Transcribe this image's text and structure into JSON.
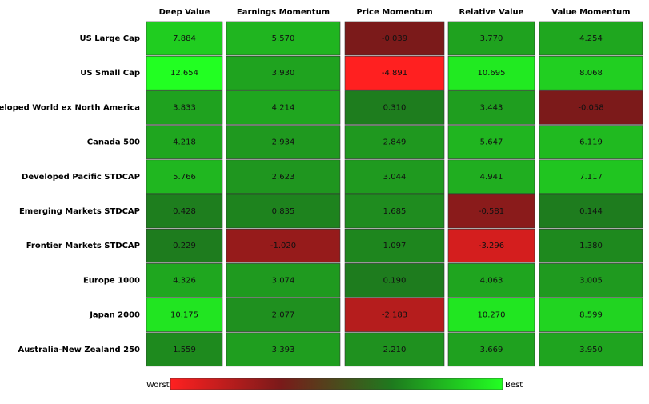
{
  "chart_data": {
    "type": "heatmap",
    "columns": [
      "Deep Value",
      "Earnings Momentum",
      "Price Momentum",
      "Relative Value",
      "Value Momentum"
    ],
    "categories": [
      "US Large Cap",
      "US Small Cap",
      "Developed World ex North America",
      "Canada 500",
      "Developed Pacific STDCAP",
      "Emerging Markets STDCAP",
      "Frontier Markets STDCAP",
      "Europe 1000",
      "Japan 2000",
      "Australia-New Zealand 250"
    ],
    "values": [
      [
        7.884,
        5.57,
        -0.039,
        3.77,
        4.254
      ],
      [
        12.654,
        3.93,
        -4.891,
        10.695,
        8.068
      ],
      [
        3.833,
        4.214,
        0.31,
        3.443,
        -0.058
      ],
      [
        4.218,
        2.934,
        2.849,
        5.647,
        6.119
      ],
      [
        5.766,
        2.623,
        3.044,
        4.941,
        7.117
      ],
      [
        0.428,
        0.835,
        1.685,
        -0.581,
        0.144
      ],
      [
        0.229,
        -1.02,
        1.097,
        -3.296,
        1.38
      ],
      [
        4.326,
        3.074,
        0.19,
        4.063,
        3.005
      ],
      [
        10.175,
        2.077,
        -2.183,
        10.27,
        8.599
      ],
      [
        1.559,
        3.393,
        2.21,
        3.669,
        3.95
      ]
    ],
    "value_labels": [
      [
        "7.884",
        "5.570",
        "-0.039",
        "3.770",
        "4.254"
      ],
      [
        "12.654",
        "3.930",
        "-4.891",
        "10.695",
        "8.068"
      ],
      [
        "3.833",
        "4.214",
        "0.310",
        "3.443",
        "-0.058"
      ],
      [
        "4.218",
        "2.934",
        "2.849",
        "5.647",
        "6.119"
      ],
      [
        "5.766",
        "2.623",
        "3.044",
        "4.941",
        "7.117"
      ],
      [
        "0.428",
        "0.835",
        "1.685",
        "-0.581",
        "0.144"
      ],
      [
        "0.229",
        "-1.020",
        "1.097",
        "-3.296",
        "1.380"
      ],
      [
        "4.326",
        "3.074",
        "0.190",
        "4.063",
        "3.005"
      ],
      [
        "10.175",
        "2.077",
        "-2.183",
        "10.270",
        "8.599"
      ],
      [
        "1.559",
        "3.393",
        "2.210",
        "3.669",
        "3.950"
      ]
    ],
    "colors": [
      "#ff2020",
      "#7a1a1a",
      "#1e7a1e",
      "#22ff22"
    ],
    "colorbar": {
      "low_label": "Worst",
      "high_label": "Best"
    }
  }
}
